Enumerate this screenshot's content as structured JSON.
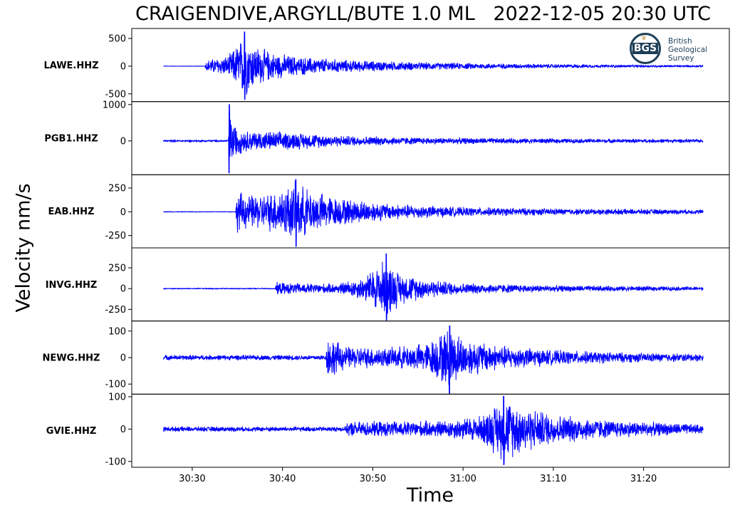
{
  "header": {
    "title": "CRAIGENDIVE,ARGYLL/BUTE 1.0 ML   2022-12-05 20:30 UTC"
  },
  "logo": {
    "mark": "BGS",
    "org_lines": [
      "British",
      "Geological",
      "Survey"
    ]
  },
  "chart_data": {
    "type": "line",
    "title": "CRAIGENDIVE,ARGYLL/BUTE 1.0 ML   2022-12-05 20:30 UTC",
    "xlabel": "Time",
    "ylabel": "Velocity nm/s",
    "line_color": "#0000ff",
    "x_ticks": [
      "30:30",
      "30:40",
      "30:50",
      "31:00",
      "31:10",
      "31:20"
    ],
    "x_tick_seconds": [
      30,
      40,
      50,
      60,
      70,
      80
    ],
    "xlim": [
      23.3,
      89.5
    ],
    "trace_x_range": [
      26.8,
      86.6
    ],
    "grid": false,
    "series": [
      {
        "name": "LAWE.HHZ",
        "ylim": [
          -640,
          680
        ],
        "y_ticks": [
          500,
          0,
          -500
        ],
        "y_tick_labels": [
          "500",
          "0",
          "-500"
        ],
        "peak_max": 620,
        "peak_min": -600,
        "envelope": [
          [
            26.8,
            4
          ],
          [
            31.4,
            5
          ],
          [
            31.6,
            120
          ],
          [
            34,
            200
          ],
          [
            35.8,
            620
          ],
          [
            36.8,
            420
          ],
          [
            39,
            260
          ],
          [
            42,
            180
          ],
          [
            48,
            110
          ],
          [
            56,
            70
          ],
          [
            66,
            45
          ],
          [
            76,
            30
          ],
          [
            86.6,
            20
          ]
        ]
      },
      {
        "name": "PGB1.HHZ",
        "ylim": [
          -930,
          1080
        ],
        "y_ticks": [
          1000,
          0
        ],
        "y_tick_labels": [
          "1000",
          "0"
        ],
        "peak_max": 1000,
        "peak_min": -880,
        "envelope": [
          [
            26.8,
            35
          ],
          [
            34,
            35
          ],
          [
            34.1,
            900
          ],
          [
            34.8,
            450
          ],
          [
            36,
            300
          ],
          [
            41,
            260
          ],
          [
            46,
            160
          ],
          [
            55,
            100
          ],
          [
            66,
            75
          ],
          [
            76,
            60
          ],
          [
            86.6,
            50
          ]
        ]
      },
      {
        "name": "EAB.HHZ",
        "ylim": [
          -380,
          390
        ],
        "y_ticks": [
          250,
          0,
          -250
        ],
        "y_tick_labels": [
          "250",
          "0",
          "-250"
        ],
        "peak_max": 340,
        "peak_min": -365,
        "envelope": [
          [
            26.8,
            4
          ],
          [
            34.8,
            4
          ],
          [
            35,
            250
          ],
          [
            36,
            190
          ],
          [
            38,
            200
          ],
          [
            41.5,
            330
          ],
          [
            43,
            250
          ],
          [
            46,
            160
          ],
          [
            52,
            90
          ],
          [
            60,
            50
          ],
          [
            72,
            35
          ],
          [
            86.6,
            25
          ]
        ]
      },
      {
        "name": "INVG.HHZ",
        "ylim": [
          -390,
          490
        ],
        "y_ticks": [
          250,
          0,
          -250
        ],
        "y_tick_labels": [
          "250",
          "0",
          "-250"
        ],
        "peak_max": 420,
        "peak_min": -380,
        "envelope": [
          [
            26.8,
            8
          ],
          [
            39.2,
            8
          ],
          [
            39.3,
            80
          ],
          [
            41,
            70
          ],
          [
            46,
            60
          ],
          [
            49,
            150
          ],
          [
            51.5,
            400
          ],
          [
            53,
            200
          ],
          [
            56,
            120
          ],
          [
            60,
            70
          ],
          [
            70,
            40
          ],
          [
            86.6,
            25
          ]
        ]
      },
      {
        "name": "NEWG.HHZ",
        "ylim": [
          -138,
          138
        ],
        "y_ticks": [
          100,
          0,
          -100
        ],
        "y_tick_labels": [
          "100",
          "0",
          "-100"
        ],
        "peak_max": 120,
        "peak_min": -135,
        "envelope": [
          [
            26.8,
            10
          ],
          [
            44.8,
            10
          ],
          [
            45,
            90
          ],
          [
            47,
            45
          ],
          [
            52,
            40
          ],
          [
            56,
            60
          ],
          [
            58.5,
            125
          ],
          [
            60,
            80
          ],
          [
            64,
            50
          ],
          [
            70,
            30
          ],
          [
            78,
            20
          ],
          [
            86.6,
            15
          ]
        ]
      },
      {
        "name": "GVIE.HHZ",
        "ylim": [
          -118,
          108
        ],
        "y_ticks": [
          100,
          0,
          -100
        ],
        "y_tick_labels": [
          "100",
          "0",
          "-100"
        ],
        "peak_max": 102,
        "peak_min": -110,
        "envelope": [
          [
            26.8,
            8
          ],
          [
            47,
            8
          ],
          [
            47.3,
            25
          ],
          [
            52,
            25
          ],
          [
            58,
            28
          ],
          [
            62,
            45
          ],
          [
            64.5,
            105
          ],
          [
            66.5,
            80
          ],
          [
            70,
            50
          ],
          [
            76,
            30
          ],
          [
            86.6,
            15
          ]
        ]
      }
    ]
  }
}
